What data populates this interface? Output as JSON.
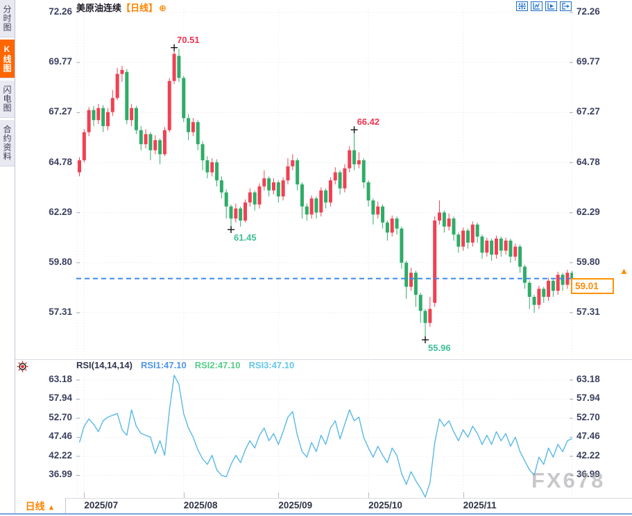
{
  "sidebar": {
    "tabs": [
      {
        "label": "分时图",
        "active": false
      },
      {
        "label": "K线图",
        "active": true
      },
      {
        "label": "闪电图",
        "active": false
      },
      {
        "label": "合约资料",
        "active": false
      }
    ],
    "active_color": "#ff6600"
  },
  "header": {
    "symbol": "美原油连续",
    "period_tag": "【日线】",
    "add_icon": "⊕"
  },
  "toolbar": {
    "icons": [
      "crosshair-icon",
      "axis-scale-icon",
      "play-scale-icon",
      "exit-right-icon"
    ],
    "color": "#1e6ec8"
  },
  "main_chart": {
    "current_price": "59.01",
    "current_price_value": 59.01,
    "price_line_color": "#3c86e8",
    "up_color": "#ef4153",
    "down_color": "#2fac68",
    "marker_arrow": "▲"
  },
  "rsi_panel": {
    "label": "RSI(14,14,14)",
    "label_color": "#33374f",
    "series": [
      {
        "text": "RSI1:47.10",
        "color": "#4d94e8"
      },
      {
        "text": "RSI2:47.10",
        "color": "#55cd87"
      },
      {
        "text": "RSI3:47.10",
        "color": "#64c6ee"
      }
    ],
    "line_color": "#58b8e6"
  },
  "bottom_bar": {
    "period_label": "日线",
    "arrow": "▲"
  },
  "watermark": "FX678",
  "chart_data": {
    "type": "candlestick",
    "title": "美原油连续【日线】",
    "price_axis_ticks": [
      72.26,
      69.77,
      67.27,
      64.78,
      62.29,
      59.8,
      57.31
    ],
    "rsi_axis_ticks": [
      63.18,
      57.94,
      52.7,
      47.46,
      42.22,
      36.99
    ],
    "x_axis": {
      "month_labels": [
        "2025/07",
        "2025/08",
        "2025/09",
        "2025/10",
        "2025/11"
      ],
      "month_indices": [
        1,
        22,
        42,
        61,
        81
      ]
    },
    "annotations": [
      {
        "text": "70.51",
        "index": 20,
        "price": 70.51,
        "side": "high",
        "color": "#ef3350"
      },
      {
        "text": "66.42",
        "index": 58,
        "price": 66.42,
        "side": "high",
        "color": "#ef3350"
      },
      {
        "text": "61.45",
        "index": 32,
        "price": 61.45,
        "side": "low",
        "color": "#3dbf96"
      },
      {
        "text": "55.96",
        "index": 73,
        "price": 55.96,
        "side": "low",
        "color": "#3dbf96"
      }
    ],
    "candles": [
      [
        64.3,
        65.05,
        64.1,
        64.9
      ],
      [
        64.9,
        66.45,
        64.8,
        66.3
      ],
      [
        66.3,
        67.55,
        66.1,
        67.4
      ],
      [
        67.4,
        67.6,
        66.6,
        66.9
      ],
      [
        66.9,
        67.7,
        66.7,
        67.5
      ],
      [
        67.5,
        67.65,
        66.3,
        66.6
      ],
      [
        66.6,
        67.5,
        66.4,
        67.3
      ],
      [
        67.3,
        68.4,
        67.1,
        68.0
      ],
      [
        68.0,
        69.5,
        67.9,
        69.2
      ],
      [
        69.2,
        69.6,
        68.8,
        69.4
      ],
      [
        69.3,
        69.45,
        66.7,
        66.9
      ],
      [
        66.9,
        67.7,
        66.6,
        67.5
      ],
      [
        67.5,
        67.6,
        66.2,
        66.4
      ],
      [
        66.4,
        66.6,
        65.4,
        65.7
      ],
      [
        65.7,
        66.45,
        65.5,
        66.2
      ],
      [
        66.2,
        66.3,
        64.9,
        65.4
      ],
      [
        65.4,
        66.15,
        65.2,
        65.9
      ],
      [
        65.9,
        66.0,
        64.7,
        65.2
      ],
      [
        65.2,
        66.55,
        65.1,
        66.4
      ],
      [
        66.4,
        69.0,
        66.3,
        68.85
      ],
      [
        68.85,
        70.51,
        68.7,
        70.2
      ],
      [
        70.1,
        70.45,
        68.8,
        69.0
      ],
      [
        69.0,
        69.1,
        66.8,
        67.0
      ],
      [
        67.0,
        67.2,
        65.9,
        66.3
      ],
      [
        66.3,
        67.0,
        66.1,
        66.8
      ],
      [
        66.8,
        66.9,
        65.4,
        65.7
      ],
      [
        65.7,
        65.85,
        64.4,
        64.9
      ],
      [
        64.9,
        65.1,
        64.0,
        64.3
      ],
      [
        64.3,
        65.0,
        64.1,
        64.8
      ],
      [
        64.8,
        64.95,
        63.6,
        63.9
      ],
      [
        63.9,
        64.1,
        63.0,
        63.3
      ],
      [
        63.3,
        63.45,
        62.0,
        62.6
      ],
      [
        62.6,
        62.7,
        61.45,
        62.0
      ],
      [
        62.0,
        62.75,
        61.8,
        62.5
      ],
      [
        62.5,
        62.6,
        61.6,
        61.9
      ],
      [
        61.9,
        62.95,
        61.8,
        62.8
      ],
      [
        62.8,
        63.5,
        62.6,
        63.3
      ],
      [
        63.3,
        63.4,
        62.4,
        62.7
      ],
      [
        62.7,
        63.75,
        62.5,
        63.6
      ],
      [
        63.6,
        64.4,
        63.4,
        64.0
      ],
      [
        64.0,
        64.1,
        63.1,
        63.4
      ],
      [
        63.4,
        64.0,
        63.2,
        63.8
      ],
      [
        63.8,
        63.9,
        62.8,
        63.1
      ],
      [
        63.1,
        64.05,
        62.9,
        63.9
      ],
      [
        63.9,
        65.0,
        63.7,
        64.6
      ],
      [
        64.6,
        65.2,
        64.4,
        64.9
      ],
      [
        64.9,
        65.0,
        63.4,
        63.7
      ],
      [
        63.7,
        63.8,
        62.0,
        62.6
      ],
      [
        62.6,
        62.75,
        61.9,
        62.2
      ],
      [
        62.2,
        63.15,
        62.0,
        63.0
      ],
      [
        63.0,
        63.1,
        62.0,
        62.3
      ],
      [
        62.3,
        63.55,
        62.1,
        63.4
      ],
      [
        63.4,
        63.5,
        62.5,
        62.8
      ],
      [
        62.8,
        64.05,
        62.6,
        63.9
      ],
      [
        63.9,
        64.55,
        63.7,
        64.3
      ],
      [
        64.3,
        64.4,
        63.2,
        63.5
      ],
      [
        63.5,
        64.7,
        63.3,
        64.5
      ],
      [
        64.5,
        65.6,
        64.3,
        65.4
      ],
      [
        65.4,
        66.42,
        64.4,
        64.7
      ],
      [
        64.7,
        65.3,
        64.5,
        64.9
      ],
      [
        64.9,
        65.0,
        63.5,
        63.8
      ],
      [
        63.8,
        63.9,
        62.6,
        62.9
      ],
      [
        62.9,
        63.0,
        61.7,
        62.2
      ],
      [
        62.2,
        62.85,
        62.0,
        62.6
      ],
      [
        62.6,
        62.7,
        61.5,
        61.8
      ],
      [
        61.8,
        61.9,
        60.9,
        61.3
      ],
      [
        61.3,
        62.15,
        61.1,
        62.0
      ],
      [
        62.0,
        62.1,
        61.2,
        61.5
      ],
      [
        61.5,
        61.6,
        59.5,
        59.8
      ],
      [
        59.8,
        59.9,
        58.0,
        58.6
      ],
      [
        58.6,
        59.55,
        58.4,
        59.3
      ],
      [
        59.3,
        59.4,
        57.6,
        58.2
      ],
      [
        58.2,
        58.3,
        56.8,
        57.4
      ],
      [
        57.4,
        57.5,
        55.96,
        56.8
      ],
      [
        56.8,
        58.1,
        56.6,
        57.5
      ],
      [
        57.8,
        62.1,
        57.6,
        61.9
      ],
      [
        61.9,
        62.9,
        61.7,
        62.3
      ],
      [
        62.3,
        62.4,
        61.3,
        61.6
      ],
      [
        61.6,
        62.25,
        61.4,
        62.0
      ],
      [
        62.0,
        62.1,
        60.9,
        61.2
      ],
      [
        61.2,
        61.3,
        60.3,
        60.6
      ],
      [
        60.6,
        61.55,
        60.4,
        61.4
      ],
      [
        61.4,
        61.5,
        60.5,
        60.8
      ],
      [
        60.8,
        61.85,
        60.6,
        61.7
      ],
      [
        61.7,
        61.8,
        60.8,
        61.1
      ],
      [
        61.1,
        61.2,
        60.0,
        60.3
      ],
      [
        60.3,
        61.05,
        60.1,
        60.9
      ],
      [
        60.9,
        61.0,
        59.9,
        60.2
      ],
      [
        60.2,
        61.15,
        60.0,
        61.0
      ],
      [
        61.0,
        61.1,
        60.1,
        60.4
      ],
      [
        60.4,
        61.05,
        60.2,
        60.9
      ],
      [
        60.9,
        61.0,
        59.8,
        60.1
      ],
      [
        60.1,
        60.75,
        59.9,
        60.6
      ],
      [
        60.6,
        60.7,
        59.3,
        59.6
      ],
      [
        59.6,
        59.7,
        58.5,
        58.8
      ],
      [
        58.8,
        58.9,
        57.5,
        58.1
      ],
      [
        58.1,
        58.2,
        57.3,
        57.7
      ],
      [
        57.7,
        58.65,
        57.5,
        58.5
      ],
      [
        58.5,
        58.6,
        57.8,
        58.1
      ],
      [
        58.1,
        59.05,
        57.9,
        58.9
      ],
      [
        58.9,
        59.0,
        58.1,
        58.4
      ],
      [
        58.4,
        59.35,
        58.2,
        59.2
      ],
      [
        59.2,
        59.3,
        58.4,
        58.7
      ],
      [
        58.7,
        59.45,
        58.5,
        59.3
      ],
      [
        59.3,
        59.4,
        58.7,
        59.01
      ]
    ],
    "rsi_values": [
      46,
      50.5,
      52.5,
      51,
      49,
      52,
      53,
      53.5,
      54,
      49.5,
      48,
      55,
      50.5,
      48.5,
      48,
      47.5,
      43,
      46.5,
      42.5,
      55,
      64.5,
      62,
      54,
      50,
      47.5,
      44,
      41.5,
      40,
      42.5,
      38.5,
      37,
      36.6,
      40,
      42.5,
      40.5,
      44,
      46.5,
      44.5,
      48,
      50,
      46.5,
      48.5,
      45.5,
      49,
      53,
      54.5,
      48,
      43.5,
      42,
      46,
      43.5,
      48,
      45.5,
      50,
      52,
      47,
      51,
      55,
      52,
      53,
      47.5,
      44.5,
      42,
      45,
      42.5,
      40.5,
      44.5,
      42.5,
      37.5,
      34.5,
      38,
      35.5,
      33.5,
      31,
      35,
      46,
      52.5,
      50.5,
      52,
      49,
      46.5,
      49.5,
      47.5,
      50.5,
      48.5,
      45.5,
      48,
      45.5,
      49,
      46.5,
      48.5,
      45,
      47.5,
      43.5,
      41,
      38.5,
      37,
      42,
      40,
      44.5,
      42,
      45.5,
      43.5,
      46.5,
      47.1
    ]
  }
}
